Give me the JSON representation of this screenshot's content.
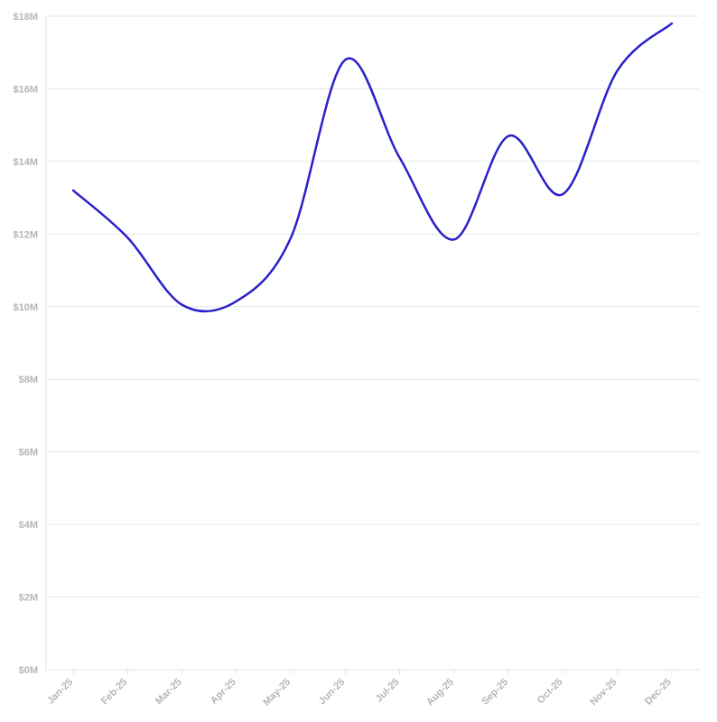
{
  "chart_data": {
    "type": "line",
    "categories": [
      "Jan-25",
      "Feb-25",
      "Mar-25",
      "Apr-25",
      "May-25",
      "Jun-25",
      "Jul-25",
      "Aug-25",
      "Sep-25",
      "Oct-25",
      "Nov-25",
      "Dec-25"
    ],
    "series": [
      {
        "values": [
          13.2,
          11.9,
          10.05,
          10.15,
          11.9,
          16.8,
          14.1,
          11.85,
          14.7,
          13.1,
          16.5,
          17.8
        ]
      }
    ],
    "y_ticks": [
      0,
      2,
      4,
      6,
      8,
      10,
      12,
      14,
      16,
      18
    ],
    "y_tick_labels": [
      "$0M",
      "$2M",
      "$4M",
      "$6M",
      "$8M",
      "$10M",
      "$12M",
      "$14M",
      "$16M",
      "$18M"
    ],
    "ylim": [
      0,
      18
    ],
    "grid": true,
    "line_color": "#2a20c9"
  }
}
